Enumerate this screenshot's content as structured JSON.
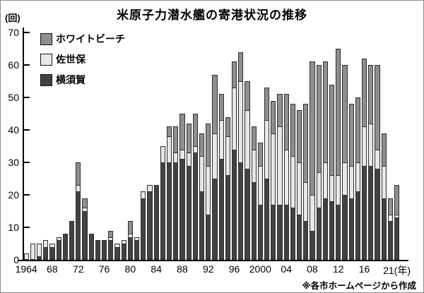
{
  "title": "米原子力潜水艦の寄港状況の推移",
  "y_axis": {
    "unit_label": "(回)",
    "tick_values": [
      0,
      10,
      20,
      30,
      40,
      50,
      60,
      70
    ]
  },
  "x_axis": {
    "tick_labels": [
      "1964",
      "68",
      "72",
      "76",
      "80",
      "84",
      "88",
      "92",
      "96",
      "2000",
      "04",
      "08",
      "12",
      "16",
      "21(年)"
    ],
    "tick_year_indices": [
      0,
      4,
      8,
      12,
      16,
      20,
      24,
      28,
      32,
      36,
      40,
      44,
      48,
      52,
      57
    ]
  },
  "legend": [
    {
      "label": "ホワイトビーチ",
      "color": "#8f8f8f"
    },
    {
      "label": "佐世保",
      "color": "#e8e8e8"
    },
    {
      "label": "横須賀",
      "color": "#424242"
    }
  ],
  "note": "※各市ホームページから作成",
  "chart_data": {
    "type": "bar",
    "stacked": true,
    "title": "米原子力潜水艦の寄港状況の推移",
    "ylabel": "(回)",
    "ylim": [
      0,
      70
    ],
    "grid": false,
    "legend_position": "top-left",
    "years": [
      1964,
      1965,
      1966,
      1967,
      1968,
      1969,
      1970,
      1971,
      1972,
      1973,
      1974,
      1975,
      1976,
      1977,
      1978,
      1979,
      1980,
      1981,
      1982,
      1983,
      1984,
      1985,
      1986,
      1987,
      1988,
      1989,
      1990,
      1991,
      1992,
      1993,
      1994,
      1995,
      1996,
      1997,
      1998,
      1999,
      2000,
      2001,
      2002,
      2003,
      2004,
      2005,
      2006,
      2007,
      2008,
      2009,
      2010,
      2011,
      2012,
      2013,
      2014,
      2015,
      2016,
      2017,
      2018,
      2019,
      2020,
      2021
    ],
    "series": [
      {
        "name": "横須賀",
        "color": "#424242",
        "values": [
          0,
          0,
          1,
          4,
          4,
          6,
          8,
          12,
          21,
          15,
          8,
          6,
          6,
          6,
          4,
          5,
          7,
          6,
          19,
          21,
          23,
          30,
          30,
          30,
          31,
          29,
          33,
          21,
          14,
          25,
          31,
          26,
          34,
          30,
          28,
          24,
          17,
          25,
          17,
          17,
          17,
          16,
          14,
          12,
          9,
          16,
          19,
          18,
          17,
          20,
          19,
          21,
          29,
          29,
          28,
          19,
          12,
          13
        ]
      },
      {
        "name": "佐世保",
        "color": "#e8e8e8",
        "values": [
          2,
          5,
          4,
          2,
          1,
          1,
          0,
          0,
          2,
          1,
          0,
          0,
          0,
          1,
          1,
          1,
          1,
          1,
          2,
          2,
          0,
          5,
          8,
          3,
          3,
          4,
          2,
          11,
          15,
          14,
          12,
          12,
          19,
          25,
          18,
          10,
          12,
          18,
          22,
          24,
          17,
          16,
          16,
          12,
          11,
          11,
          11,
          8,
          9,
          10,
          10,
          9,
          12,
          13,
          6,
          10,
          2,
          1
        ]
      },
      {
        "name": "ホワイトビーチ",
        "color": "#8f8f8f",
        "values": [
          0,
          0,
          0,
          0,
          0,
          0,
          0,
          0,
          7,
          3,
          0,
          0,
          0,
          2,
          0,
          0,
          4,
          0,
          0,
          0,
          0,
          0,
          3,
          8,
          11,
          9,
          10,
          7,
          13,
          18,
          8,
          6,
          8,
          9,
          9,
          7,
          7,
          10,
          10,
          10,
          17,
          16,
          16,
          24,
          41,
          33,
          31,
          28,
          39,
          30,
          19,
          20,
          21,
          18,
          26,
          10,
          5,
          9
        ]
      }
    ]
  }
}
